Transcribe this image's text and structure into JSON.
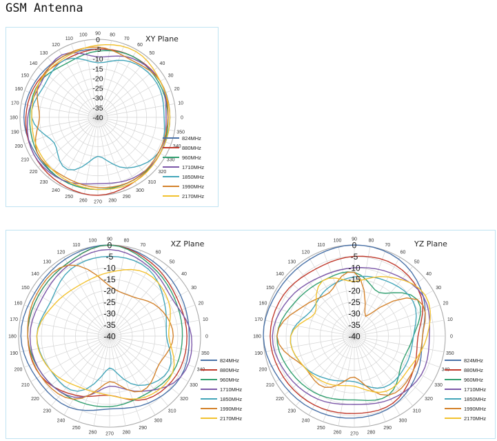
{
  "title": "GSM Antenna",
  "chart_data": [
    {
      "type": "line",
      "subtype": "polar",
      "title": "XY Plane",
      "r_ticks": [
        0,
        -5,
        -10,
        -15,
        -20,
        -25,
        -30,
        -35,
        -40
      ],
      "rlim": [
        -40,
        0
      ],
      "theta_ticks": [
        0,
        10,
        20,
        30,
        40,
        50,
        60,
        70,
        80,
        90,
        100,
        110,
        120,
        130,
        140,
        150,
        160,
        170,
        180,
        190,
        200,
        210,
        220,
        230,
        240,
        250,
        260,
        270,
        280,
        290,
        300,
        310,
        320,
        330,
        340,
        350
      ],
      "grid": true,
      "legend_position": "right",
      "angles": [
        0,
        30,
        60,
        90,
        120,
        150,
        180,
        210,
        240,
        270,
        300,
        330
      ],
      "series": [
        {
          "name": "824MHz",
          "color": "#4a72a8",
          "values": [
            -3,
            -3,
            -4,
            -5,
            -4,
            -3,
            -2,
            -3,
            -3,
            -3,
            -3,
            -3
          ]
        },
        {
          "name": "880MHz",
          "color": "#c0392b",
          "values": [
            -4,
            -3,
            -4,
            -5,
            -6,
            -4,
            -3,
            -2,
            -1,
            0,
            -2,
            -3
          ]
        },
        {
          "name": "960MHz",
          "color": "#2f9e6e",
          "values": [
            -4,
            -4,
            -4,
            -6,
            -8,
            -5,
            -5,
            -4,
            -3,
            -3,
            -3,
            -3
          ]
        },
        {
          "name": "1710MHz",
          "color": "#7b57a8",
          "values": [
            -5,
            -3,
            -5,
            -9,
            -3,
            -6,
            -4,
            -2,
            -3,
            -6,
            -4,
            -3
          ]
        },
        {
          "name": "1850MHz",
          "color": "#42a5b9",
          "values": [
            -6,
            -5,
            -7,
            -12,
            -6,
            -8,
            -6,
            -14,
            -9,
            -20,
            -10,
            -4
          ]
        },
        {
          "name": "1990MHz",
          "color": "#d3812a",
          "values": [
            -4,
            -3,
            -6,
            -4,
            -4,
            -5,
            -10,
            -4,
            -5,
            -4,
            -3,
            -4
          ]
        },
        {
          "name": "2170MHz",
          "color": "#f2c12e",
          "values": [
            -3,
            -3,
            -1,
            -3,
            -5,
            -5,
            -6,
            -5,
            -4,
            -3,
            -2,
            -3
          ]
        }
      ]
    },
    {
      "type": "line",
      "subtype": "polar",
      "title": "XZ Plane",
      "r_ticks": [
        0,
        -5,
        -10,
        -15,
        -20,
        -25,
        -30,
        -35,
        -40
      ],
      "rlim": [
        -40,
        0
      ],
      "theta_ticks": [
        0,
        10,
        20,
        30,
        40,
        50,
        60,
        70,
        80,
        90,
        100,
        110,
        120,
        130,
        140,
        150,
        160,
        170,
        180,
        190,
        200,
        210,
        220,
        230,
        240,
        250,
        260,
        270,
        280,
        290,
        300,
        310,
        320,
        330,
        340,
        350
      ],
      "grid": true,
      "legend_position": "right",
      "angles": [
        0,
        30,
        60,
        90,
        120,
        150,
        180,
        210,
        240,
        270,
        300,
        330
      ],
      "series": [
        {
          "name": "824MHz",
          "color": "#4a72a8",
          "values": [
            -5,
            -4,
            -2,
            0,
            -1,
            -2,
            -1,
            -3,
            -4,
            -8,
            -6,
            -4
          ]
        },
        {
          "name": "880MHz",
          "color": "#c0392b",
          "values": [
            -6,
            -6,
            -3,
            0,
            -3,
            -4,
            -4,
            -5,
            -10,
            -14,
            -8,
            -6
          ]
        },
        {
          "name": "960MHz",
          "color": "#2f9e6e",
          "values": [
            -8,
            -7,
            -4,
            0,
            -3,
            -4,
            -4,
            -6,
            -8,
            -9,
            -10,
            -8
          ]
        },
        {
          "name": "1710MHz",
          "color": "#7b57a8",
          "values": [
            -4,
            -8,
            -5,
            -2,
            -4,
            -6,
            -5,
            -6,
            -9,
            -18,
            -12,
            -4
          ]
        },
        {
          "name": "1850MHz",
          "color": "#42a5b9",
          "values": [
            -15,
            -12,
            -6,
            -5,
            -6,
            -10,
            -8,
            -10,
            -12,
            -26,
            -15,
            -10
          ]
        },
        {
          "name": "1990MHz",
          "color": "#d3812a",
          "values": [
            -12,
            -15,
            -20,
            -18,
            -4,
            -3,
            -4,
            -5,
            -8,
            -20,
            -12,
            -15
          ]
        },
        {
          "name": "2170MHz",
          "color": "#f2c12e",
          "values": [
            -14,
            -10,
            -8,
            -12,
            -14,
            -12,
            -8,
            -10,
            -14,
            -14,
            -9,
            -8
          ]
        }
      ]
    },
    {
      "type": "line",
      "subtype": "polar",
      "title": "YZ Plane",
      "r_ticks": [
        0,
        -5,
        -10,
        -15,
        -20,
        -25,
        -30,
        -35,
        -40
      ],
      "rlim": [
        -40,
        0
      ],
      "theta_ticks": [
        0,
        10,
        20,
        30,
        40,
        50,
        60,
        70,
        80,
        90,
        100,
        110,
        120,
        130,
        140,
        150,
        160,
        170,
        180,
        190,
        200,
        210,
        220,
        230,
        240,
        250,
        260,
        270,
        280,
        290,
        300,
        310,
        320,
        330,
        340,
        350
      ],
      "grid": true,
      "legend_position": "right",
      "angles": [
        0,
        30,
        60,
        90,
        120,
        150,
        180,
        210,
        240,
        270,
        300,
        330
      ],
      "series": [
        {
          "name": "824MHz",
          "color": "#4a72a8",
          "values": [
            -10,
            -5,
            -1,
            0,
            -1,
            -1,
            0,
            -2,
            -3,
            -4,
            -5,
            -8
          ]
        },
        {
          "name": "880MHz",
          "color": "#c0392b",
          "values": [
            -12,
            -6,
            -4,
            -5,
            -6,
            -4,
            -3,
            -4,
            -5,
            -6,
            -6,
            -10
          ]
        },
        {
          "name": "960MHz",
          "color": "#2f9e6e",
          "values": [
            -14,
            -8,
            -18,
            -12,
            -12,
            -10,
            -6,
            -8,
            -10,
            -12,
            -10,
            -16
          ]
        },
        {
          "name": "1710MHz",
          "color": "#7b57a8",
          "values": [
            -7,
            -5,
            -8,
            -10,
            -10,
            -7,
            -4,
            -6,
            -8,
            -10,
            -8,
            -6
          ]
        },
        {
          "name": "1850MHz",
          "color": "#42a5b9",
          "values": [
            -14,
            -10,
            -12,
            -14,
            -16,
            -18,
            -12,
            -14,
            -18,
            -20,
            -14,
            -14
          ]
        },
        {
          "name": "1990MHz",
          "color": "#d3812a",
          "values": [
            -10,
            -8,
            -30,
            -12,
            -18,
            -14,
            -6,
            -14,
            -14,
            -22,
            -10,
            -10
          ]
        },
        {
          "name": "2170MHz",
          "color": "#f2c12e",
          "values": [
            -8,
            -4,
            -10,
            -16,
            -12,
            -20,
            -12,
            -14,
            -16,
            -18,
            -12,
            -12
          ]
        }
      ]
    }
  ]
}
